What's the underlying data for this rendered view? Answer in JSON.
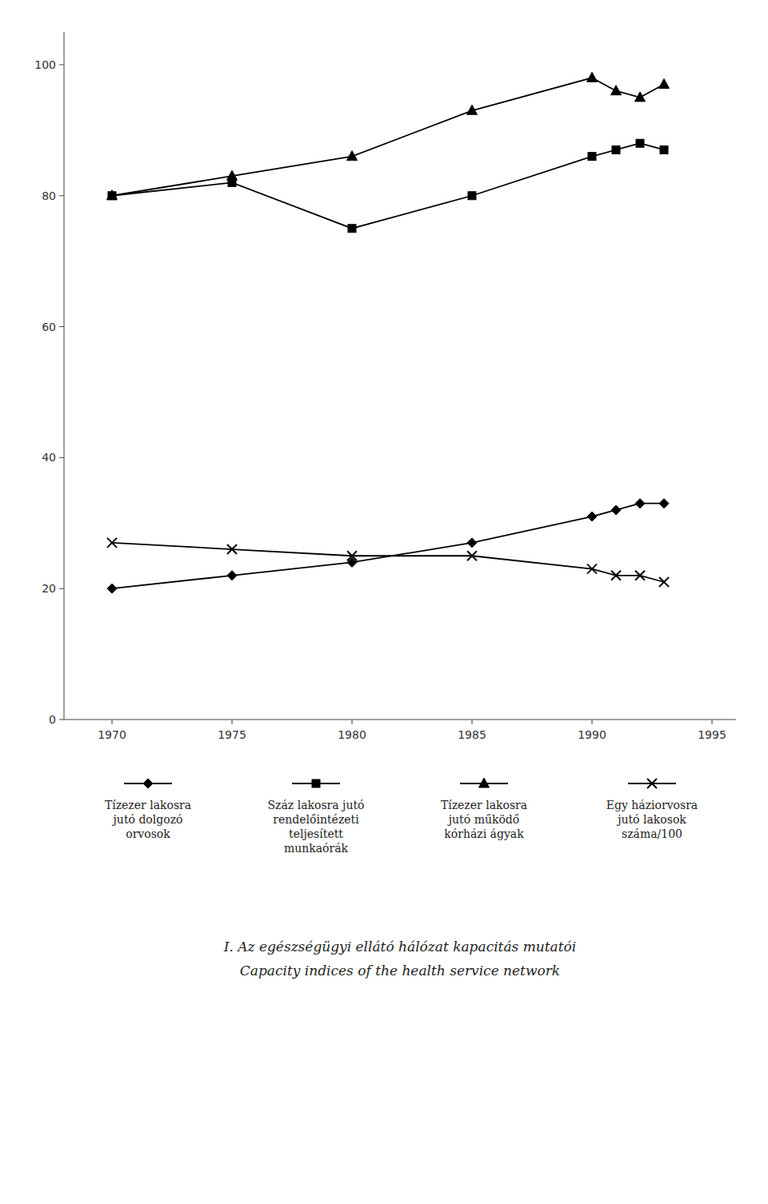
{
  "chart_data": {
    "type": "line",
    "x": [
      1970,
      1975,
      1980,
      1985,
      1990,
      1991,
      1992,
      1993
    ],
    "series": [
      {
        "name": "Tízezer lakosra\njutó dolgozó\norvosok",
        "color": "#000000",
        "marker": "diamond",
        "line_style": "solid",
        "values": [
          20,
          22,
          24,
          27,
          31,
          32,
          33,
          33
        ]
      },
      {
        "name": "Száz lakosra jutó\nrendelőintézeti\nteljesített\nmunkaórák",
        "color": "#000000",
        "marker": "square",
        "line_style": "solid",
        "values": [
          80,
          82,
          75,
          80,
          86,
          87,
          88,
          87
        ]
      },
      {
        "name": "Tízezer lakosra\njutó működő\nkórházi ágyak",
        "color": "#000000",
        "marker": "triangle",
        "line_style": "solid",
        "values": [
          80,
          83,
          86,
          93,
          98,
          96,
          95,
          97
        ]
      },
      {
        "name": "Egy háziorvosra\njutó lakosok\nszáma/100",
        "color": "#000000",
        "marker": "x",
        "line_style": "solid",
        "values": [
          27,
          26,
          25,
          25,
          23,
          22,
          22,
          21
        ]
      }
    ],
    "xlim": [
      1968,
      1996
    ],
    "ylim": [
      0,
      105
    ],
    "xticks": [
      1970,
      1975,
      1980,
      1985,
      1990,
      1995
    ],
    "yticks": [
      0,
      20,
      40,
      60,
      80,
      100
    ],
    "grid": false,
    "legend": "bottom",
    "annotations": [
      "I. Az egészségügyi ellátó hálózat kapacitás mutatói",
      "Capacity indices of the health service network"
    ]
  }
}
